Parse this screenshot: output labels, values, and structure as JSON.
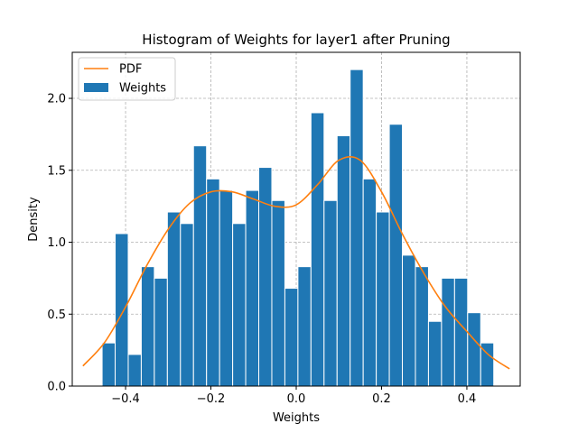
{
  "chart_data": {
    "type": "bar",
    "title": "Histogram of Weights for layer1 after Pruning",
    "xlabel": "Weights",
    "ylabel": "Density",
    "xlim": [
      -0.525,
      0.525
    ],
    "ylim": [
      0,
      2.32
    ],
    "grid": true,
    "legend_position": "top-left",
    "x_ticks": [
      -0.4,
      -0.2,
      0.0,
      0.2,
      0.4
    ],
    "x_tick_labels": [
      "−0.4",
      "−0.2",
      "0.0",
      "0.2",
      "0.4"
    ],
    "y_ticks": [
      0.0,
      0.5,
      1.0,
      1.5,
      2.0
    ],
    "y_tick_labels": [
      "0.0",
      "0.5",
      "1.0",
      "1.5",
      "2.0"
    ],
    "bin_edges": [
      -0.455,
      -0.4244,
      -0.3938,
      -0.3632,
      -0.3326,
      -0.302,
      -0.2714,
      -0.2408,
      -0.2102,
      -0.1796,
      -0.149,
      -0.1184,
      -0.0878,
      -0.0572,
      -0.0266,
      0.004,
      0.0346,
      0.0652,
      0.0958,
      0.1264,
      0.157,
      0.1876,
      0.2182,
      0.2488,
      0.2794,
      0.31,
      0.3406,
      0.3712,
      0.4018,
      0.4324,
      0.463
    ],
    "series": [
      {
        "name": "Weights",
        "type": "bar",
        "color": "#1f77b4",
        "values": [
          0.3,
          1.06,
          0.22,
          0.83,
          0.75,
          1.21,
          1.13,
          1.67,
          1.44,
          1.36,
          1.13,
          1.36,
          1.52,
          1.29,
          0.68,
          0.83,
          1.9,
          1.29,
          1.74,
          2.2,
          1.44,
          1.21,
          1.82,
          0.91,
          0.83,
          0.45,
          0.75,
          0.75,
          0.51,
          0.3
        ]
      },
      {
        "name": "PDF",
        "type": "line",
        "color": "#ff7f0e",
        "x": [
          -0.5,
          -0.45,
          -0.4,
          -0.35,
          -0.3,
          -0.25,
          -0.2,
          -0.15,
          -0.1,
          -0.05,
          0.0,
          0.05,
          0.1,
          0.15,
          0.2,
          0.25,
          0.3,
          0.35,
          0.4,
          0.45,
          0.5
        ],
        "y": [
          0.14,
          0.3,
          0.55,
          0.84,
          1.09,
          1.27,
          1.35,
          1.35,
          1.3,
          1.25,
          1.26,
          1.4,
          1.57,
          1.57,
          1.35,
          1.05,
          0.78,
          0.55,
          0.38,
          0.22,
          0.12
        ]
      }
    ]
  }
}
